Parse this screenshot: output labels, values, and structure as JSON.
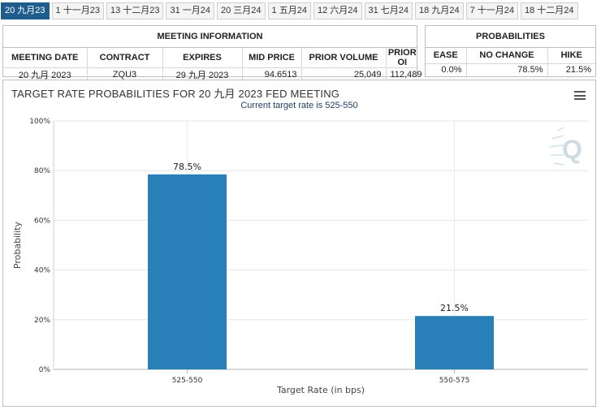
{
  "tabs": [
    {
      "label": "20 九月23",
      "active": true
    },
    {
      "label": "1 十一月23",
      "active": false
    },
    {
      "label": "13 十二月23",
      "active": false
    },
    {
      "label": "31 一月24",
      "active": false
    },
    {
      "label": "20 三月24",
      "active": false
    },
    {
      "label": "1 五月24",
      "active": false
    },
    {
      "label": "12 六月24",
      "active": false
    },
    {
      "label": "31 七月24",
      "active": false
    },
    {
      "label": "18 九月24",
      "active": false
    },
    {
      "label": "7 十一月24",
      "active": false
    },
    {
      "label": "18 十二月24",
      "active": false
    }
  ],
  "meeting_info": {
    "title": "MEETING INFORMATION",
    "headers": [
      "MEETING DATE",
      "CONTRACT",
      "EXPIRES",
      "MID PRICE",
      "PRIOR VOLUME",
      "PRIOR OI"
    ],
    "row": [
      "20 九月 2023",
      "ZQU3",
      "29 九月 2023",
      "94.6513",
      "25,049",
      "112,489"
    ]
  },
  "probabilities": {
    "title": "PROBABILITIES",
    "headers": [
      "EASE",
      "NO CHANGE",
      "HIKE"
    ],
    "row": [
      "0.0%",
      "78.5%",
      "21.5%"
    ]
  },
  "chart": {
    "title": "TARGET RATE PROBABILITIES FOR 20 九月 2023 FED MEETING",
    "subtitle": "Current target rate is 525-550",
    "watermark": "Q",
    "menu_icon": "hamburger-menu-icon"
  },
  "chart_data": {
    "type": "bar",
    "categories": [
      "525-550",
      "550-575"
    ],
    "values": [
      78.5,
      21.5
    ],
    "data_labels": [
      "78.5%",
      "21.5%"
    ],
    "xlabel": "Target Rate (in bps)",
    "ylabel": "Probability",
    "ylim": [
      0,
      100
    ],
    "yticks": [
      "0%",
      "20%",
      "40%",
      "60%",
      "80%",
      "100%"
    ],
    "bar_color": "#2980b9",
    "grid": true
  }
}
